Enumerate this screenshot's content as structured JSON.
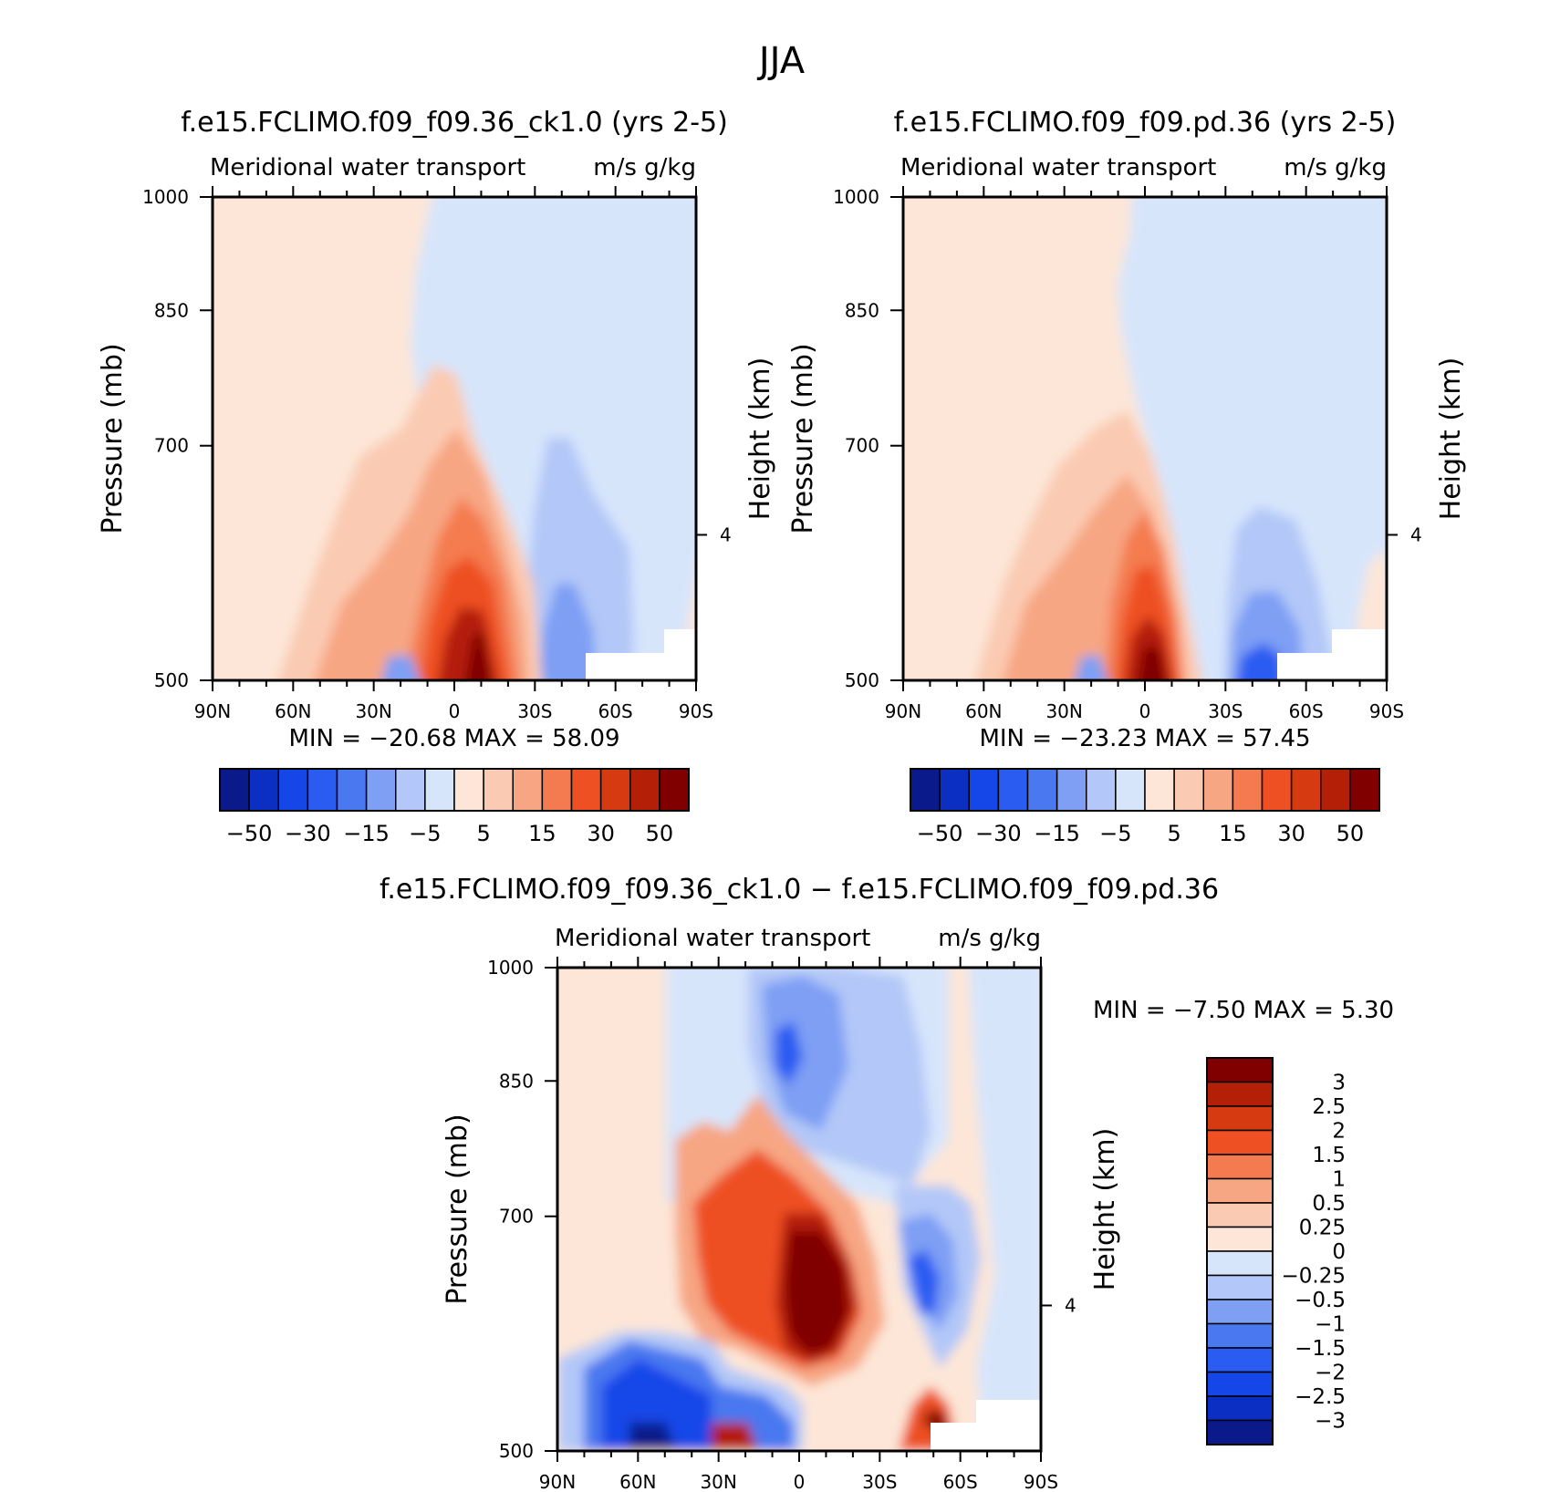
{
  "figure_title": "JJA",
  "colors": {
    "abs_scale": [
      "#0a1a8a",
      "#0a2fc2",
      "#1446e8",
      "#2a5cf2",
      "#4a78f0",
      "#7e9ff4",
      "#b3c8f8",
      "#d7e5fb",
      "#fde6d7",
      "#fbcab2",
      "#f7a683",
      "#f47b4f",
      "#ee4f23",
      "#d63a10",
      "#b41f08",
      "#800000"
    ],
    "diff_scale": [
      "#0a1a8a",
      "#0a2fc2",
      "#1446e8",
      "#2a5cf2",
      "#4a78f0",
      "#7e9ff4",
      "#b3c8f8",
      "#d7e5fb",
      "#fde6d7",
      "#fbcab2",
      "#f7a683",
      "#f47b4f",
      "#ee4f23",
      "#d63a10",
      "#b41f08",
      "#800000"
    ]
  },
  "chart_data": [
    {
      "type": "heatmap",
      "case_title": "f.e15.FCLIMO.f09_f09.36_ck1.0 (yrs 2-5)",
      "title": "Meridional water transport",
      "units": "m/s g/kg",
      "ylabel": "Pressure (mb)",
      "ylabel_right": "Height (km)",
      "x_ticks": [
        "90N",
        "60N",
        "30N",
        "0",
        "30S",
        "60S",
        "90S"
      ],
      "y_ticks": [
        "500",
        "700",
        "850",
        "1000"
      ],
      "y_ticks_right": [
        "4"
      ],
      "min_max_text": "MIN =  −20.68   MAX =   58.09",
      "min": -20.68,
      "max": 58.09,
      "colorbar_labels": [
        "−50",
        "−30",
        "−15",
        "−5",
        "5",
        "15",
        "30",
        "50"
      ],
      "xlim": [
        90,
        -90
      ],
      "ylim": [
        1000,
        500
      ]
    },
    {
      "type": "heatmap",
      "case_title": "f.e15.FCLIMO.f09_f09.pd.36 (yrs 2-5)",
      "title": "Meridional water transport",
      "units": "m/s g/kg",
      "ylabel": "Pressure (mb)",
      "ylabel_right": "Height (km)",
      "x_ticks": [
        "90N",
        "60N",
        "30N",
        "0",
        "30S",
        "60S",
        "90S"
      ],
      "y_ticks": [
        "500",
        "700",
        "850",
        "1000"
      ],
      "y_ticks_right": [
        "4"
      ],
      "min_max_text": "MIN =  −23.23   MAX =   57.45",
      "min": -23.23,
      "max": 57.45,
      "colorbar_labels": [
        "−50",
        "−30",
        "−15",
        "−5",
        "5",
        "15",
        "30",
        "50"
      ],
      "xlim": [
        90,
        -90
      ],
      "ylim": [
        1000,
        500
      ]
    },
    {
      "type": "heatmap",
      "case_title": "f.e15.FCLIMO.f09_f09.36_ck1.0 − f.e15.FCLIMO.f09_f09.pd.36",
      "title": "Meridional water transport",
      "units": "m/s g/kg",
      "ylabel": "Pressure (mb)",
      "ylabel_right": "Height (km)",
      "x_ticks": [
        "90N",
        "60N",
        "30N",
        "0",
        "30S",
        "60S",
        "90S"
      ],
      "y_ticks": [
        "500",
        "700",
        "850",
        "1000"
      ],
      "y_ticks_right": [
        "4"
      ],
      "min_max_text": "MIN =    −7.50    MAX =     5.30",
      "min": -7.5,
      "max": 5.3,
      "colorbar_labels": [
        "3",
        "2.5",
        "2",
        "1.5",
        "1",
        "0.5",
        "0.25",
        "0",
        "−0.25",
        "−0.5",
        "−1",
        "−1.5",
        "−2",
        "−2.5",
        "−3"
      ],
      "xlim": [
        90,
        -90
      ],
      "ylim": [
        1000,
        500
      ]
    }
  ]
}
